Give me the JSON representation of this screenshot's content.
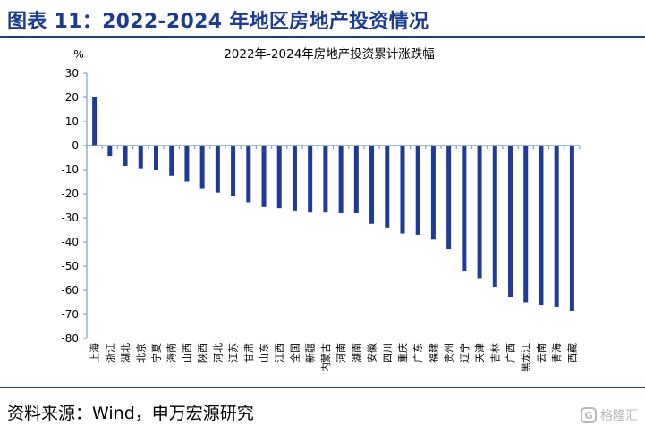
{
  "header": {
    "title": "图表 11：2022-2024 年地区房地产投资情况"
  },
  "footer": {
    "source": "资料来源：Wind，申万宏源研究"
  },
  "watermark": {
    "icon": "G",
    "text": "格隆汇"
  },
  "chart_data": {
    "type": "bar",
    "title": "2022年-2024年房地产投资累计涨跌幅",
    "unit_label": "%",
    "ylim": [
      -80,
      30
    ],
    "yticks": [
      30,
      20,
      10,
      0,
      -10,
      -20,
      -30,
      -40,
      -50,
      -60,
      -70,
      -80
    ],
    "grid": false,
    "bar_color": "#1f3b97",
    "axis_color": "#7aa0c8",
    "categories": [
      "上海",
      "浙江",
      "湖北",
      "北京",
      "宁夏",
      "海南",
      "山西",
      "陕西",
      "河北",
      "江苏",
      "甘肃",
      "山东",
      "江西",
      "全国",
      "新疆",
      "内蒙古",
      "河南",
      "湖南",
      "安徽",
      "四川",
      "重庆",
      "广东",
      "福建",
      "贵州",
      "辽宁",
      "天津",
      "吉林",
      "广西",
      "黑龙江",
      "云南",
      "青海",
      "西藏"
    ],
    "values": [
      20,
      -4.5,
      -8.5,
      -9.5,
      -10,
      -12.5,
      -15,
      -18,
      -19.5,
      -21,
      -23.5,
      -25.5,
      -26,
      -27,
      -27.5,
      -27.5,
      -28,
      -28,
      -32.5,
      -34,
      -36.5,
      -37,
      -39,
      -43,
      -52,
      -55,
      -58.5,
      -63,
      -65,
      -66,
      -67,
      -68.5
    ]
  }
}
